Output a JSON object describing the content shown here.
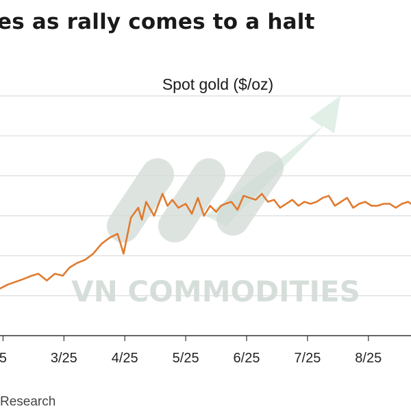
{
  "title": "es as rally comes to a halt",
  "source": "Research",
  "watermark": "VN COMMODITIES",
  "colors": {
    "line": "#e07a2e",
    "grid": "#d9d9d9",
    "axis": "#333333",
    "watermark": "#cfd9d4",
    "arrow": "#dfeee6"
  },
  "chart_data": {
    "type": "line",
    "title": "Spot gold ($/oz)",
    "xlabel": "",
    "ylabel": "",
    "grid": true,
    "x_ticks": [
      "5",
      "3/25",
      "4/25",
      "5/25",
      "6/25",
      "7/25",
      "8/25"
    ],
    "x_tick_values": [
      2.0,
      3.0,
      4.0,
      5.0,
      6.0,
      7.0,
      8.0
    ],
    "xlim": [
      1.95,
      8.7
    ],
    "ylim": [
      0,
      6
    ],
    "y_gridlines": [
      1,
      2,
      3,
      4,
      5,
      6
    ],
    "series": [
      {
        "x": [
          1.95,
          2.08,
          2.21,
          2.34,
          2.47,
          2.58,
          2.72,
          2.85,
          2.98,
          3.09,
          3.22,
          3.35,
          3.48,
          3.62,
          3.75,
          3.88,
          3.98,
          4.1,
          4.22,
          4.28,
          4.35,
          4.48,
          4.62,
          4.7,
          4.78,
          4.88,
          5.0,
          5.1,
          5.2,
          5.3,
          5.4,
          5.5,
          5.58,
          5.65,
          5.75,
          5.85,
          5.95,
          6.05,
          6.15,
          6.25,
          6.35,
          6.45,
          6.55,
          6.65,
          6.75,
          6.85,
          6.95,
          7.05,
          7.15,
          7.25,
          7.35,
          7.45,
          7.55,
          7.65,
          7.75,
          7.85,
          7.95,
          8.05,
          8.15,
          8.25,
          8.35,
          8.45,
          8.55,
          8.65,
          8.7
        ],
        "y": [
          1.18,
          1.28,
          1.35,
          1.42,
          1.5,
          1.55,
          1.38,
          1.55,
          1.5,
          1.7,
          1.82,
          1.9,
          2.05,
          2.3,
          2.45,
          2.55,
          2.05,
          2.95,
          3.2,
          2.9,
          3.35,
          3.0,
          3.55,
          3.25,
          3.4,
          3.2,
          3.3,
          3.05,
          3.45,
          3.0,
          3.25,
          3.1,
          3.25,
          3.3,
          3.35,
          3.15,
          3.5,
          3.45,
          3.4,
          3.55,
          3.35,
          3.4,
          3.2,
          3.3,
          3.4,
          3.25,
          3.35,
          3.3,
          3.35,
          3.45,
          3.5,
          3.25,
          3.35,
          3.45,
          3.2,
          3.3,
          3.35,
          3.25,
          3.25,
          3.3,
          3.3,
          3.2,
          3.3,
          3.35,
          3.3
        ]
      }
    ]
  }
}
